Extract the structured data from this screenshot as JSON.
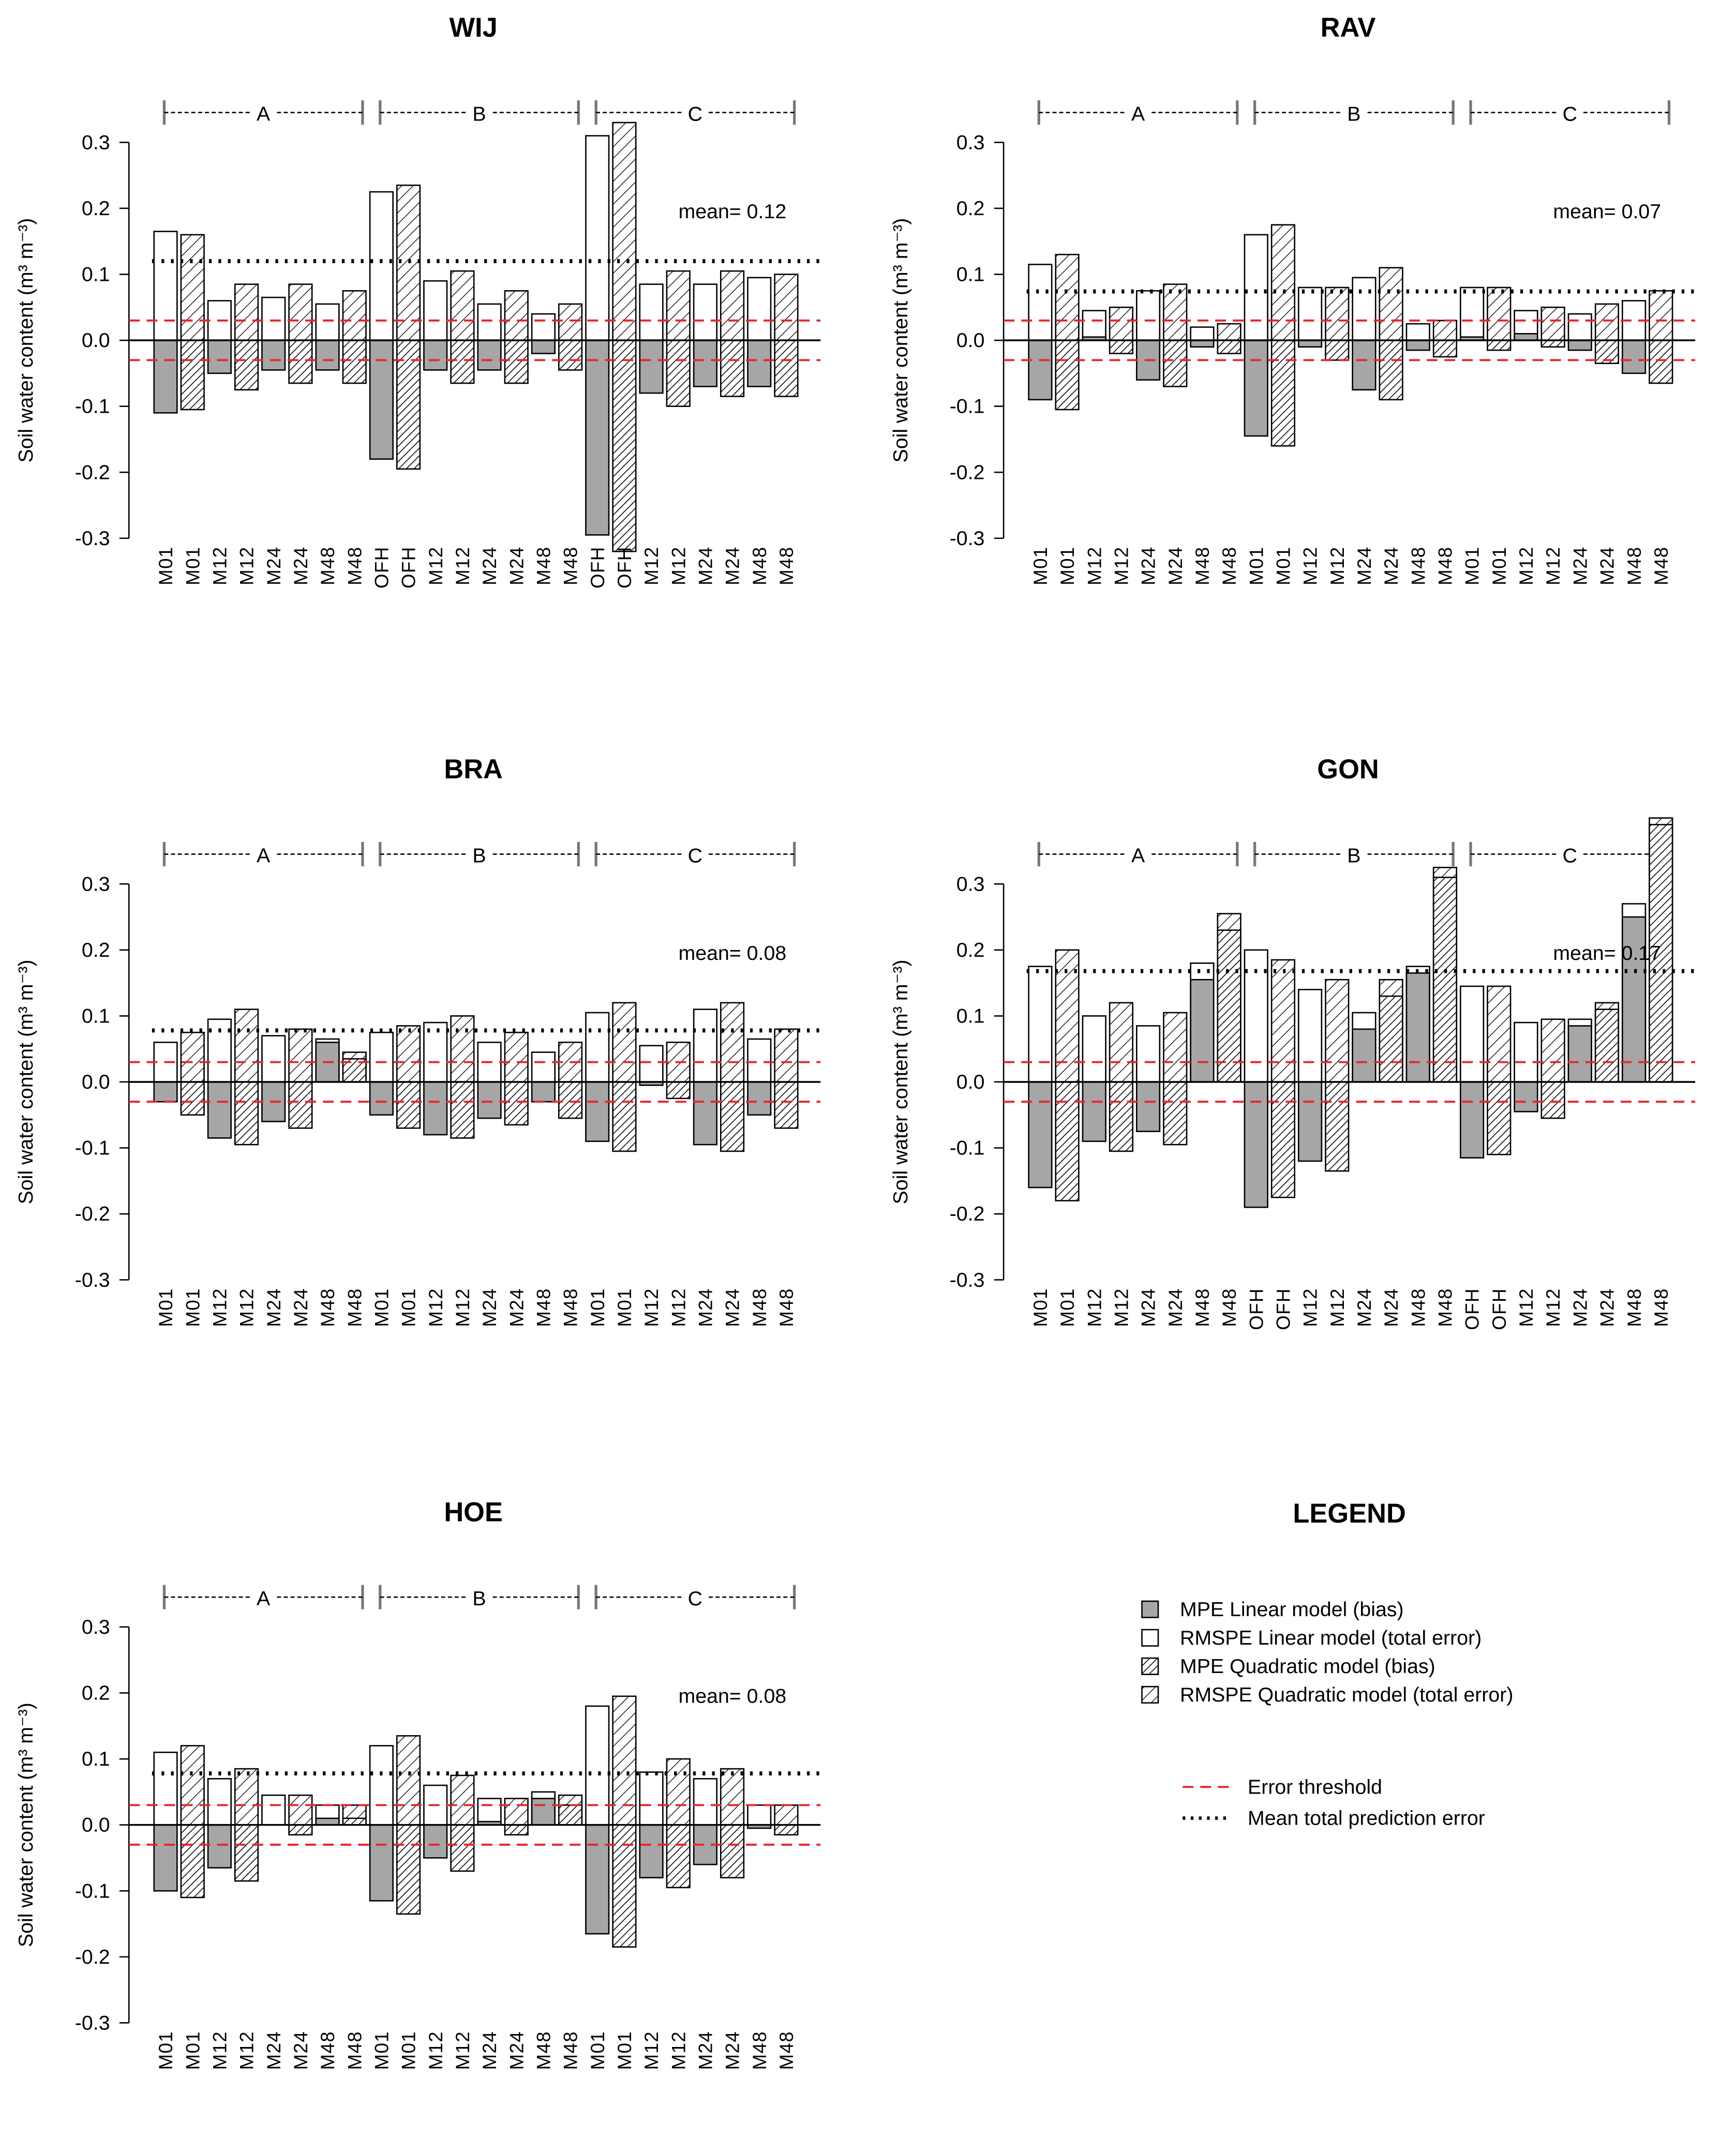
{
  "chart_data": [
    {
      "type": "bar",
      "title": "WIJ",
      "ylabel": "Soil water content  (m³ m⁻³)",
      "groups": [
        "A",
        "B",
        "C"
      ],
      "categories": [
        "M01",
        "M01",
        "M12",
        "M12",
        "M24",
        "M24",
        "M48",
        "M48",
        "OFH",
        "OFH",
        "M12",
        "M12",
        "M24",
        "M24",
        "M48",
        "M48",
        "OFH",
        "OFH",
        "M12",
        "M12",
        "M24",
        "M24",
        "M48",
        "M48"
      ],
      "rmspe": [
        0.165,
        0.16,
        0.06,
        0.085,
        0.065,
        0.085,
        0.055,
        0.075,
        0.225,
        0.235,
        0.09,
        0.105,
        0.055,
        0.075,
        0.04,
        0.055,
        0.31,
        0.33,
        0.085,
        0.105,
        0.085,
        0.105,
        0.095,
        0.1
      ],
      "mpe": [
        -0.11,
        -0.105,
        -0.05,
        -0.075,
        -0.045,
        -0.065,
        -0.045,
        -0.065,
        -0.18,
        -0.195,
        -0.045,
        -0.065,
        -0.045,
        -0.065,
        -0.02,
        -0.045,
        -0.295,
        -0.32,
        -0.08,
        -0.1,
        -0.07,
        -0.085,
        -0.07,
        -0.085
      ],
      "mean": 0.12,
      "mean_label": "mean= 0.12",
      "thresholds": [
        0.03,
        -0.03
      ],
      "ylim": [
        -0.3,
        0.3
      ],
      "yticks": [
        0.3,
        0.2,
        0.1,
        {
          "value": 0,
          "label": "0.0"
        },
        -0.1,
        -0.2,
        -0.3
      ]
    },
    {
      "type": "bar",
      "title": "RAV",
      "ylabel": "Soil water content  (m³ m⁻³)",
      "groups": [
        "A",
        "B",
        "C"
      ],
      "categories": [
        "M01",
        "M01",
        "M12",
        "M12",
        "M24",
        "M24",
        "M48",
        "M48",
        "M01",
        "M01",
        "M12",
        "M12",
        "M24",
        "M24",
        "M48",
        "M48",
        "M01",
        "M01",
        "M12",
        "M12",
        "M24",
        "M24",
        "M48",
        "M48"
      ],
      "rmspe": [
        0.115,
        0.13,
        0.045,
        0.05,
        0.075,
        0.085,
        0.02,
        0.025,
        0.16,
        0.175,
        0.08,
        0.08,
        0.095,
        0.11,
        0.025,
        0.03,
        0.08,
        0.08,
        0.045,
        0.05,
        0.04,
        0.055,
        0.06,
        0.075
      ],
      "mpe": [
        -0.09,
        -0.105,
        0.005,
        -0.02,
        -0.06,
        -0.07,
        -0.01,
        -0.02,
        -0.145,
        -0.16,
        -0.01,
        -0.03,
        -0.075,
        -0.09,
        -0.015,
        -0.025,
        0.005,
        -0.015,
        0.01,
        -0.01,
        -0.015,
        -0.035,
        -0.05,
        -0.065
      ],
      "mean": 0.074,
      "mean_label": "mean= 0.07",
      "thresholds": [
        0.03,
        -0.03
      ],
      "ylim": [
        -0.3,
        0.3
      ],
      "yticks": [
        0.3,
        0.2,
        0.1,
        {
          "value": 0,
          "label": "0.0"
        },
        -0.1,
        -0.2,
        -0.3
      ]
    },
    {
      "type": "bar",
      "title": "BRA",
      "ylabel": "Soil water content  (m³ m⁻³)",
      "groups": [
        "A",
        "B",
        "C"
      ],
      "categories": [
        "M01",
        "M01",
        "M12",
        "M12",
        "M24",
        "M24",
        "M48",
        "M48",
        "M01",
        "M01",
        "M12",
        "M12",
        "M24",
        "M24",
        "M48",
        "M48",
        "M01",
        "M01",
        "M12",
        "M12",
        "M24",
        "M24",
        "M48",
        "M48"
      ],
      "rmspe": [
        0.06,
        0.075,
        0.095,
        0.11,
        0.07,
        0.08,
        0.065,
        0.045,
        0.075,
        0.085,
        0.09,
        0.1,
        0.06,
        0.075,
        0.045,
        0.06,
        0.105,
        0.12,
        0.055,
        0.06,
        0.11,
        0.12,
        0.065,
        0.08
      ],
      "mpe": [
        -0.03,
        -0.05,
        -0.085,
        -0.095,
        -0.06,
        -0.07,
        0.06,
        0.035,
        -0.05,
        -0.07,
        -0.08,
        -0.085,
        -0.055,
        -0.065,
        -0.03,
        -0.055,
        -0.09,
        -0.105,
        -0.005,
        -0.025,
        -0.095,
        -0.105,
        -0.05,
        -0.07
      ],
      "mean": 0.078,
      "mean_label": "mean= 0.08",
      "thresholds": [
        0.03,
        -0.03
      ],
      "ylim": [
        -0.3,
        0.3
      ],
      "yticks": [
        0.3,
        0.2,
        0.1,
        {
          "value": 0,
          "label": "0.0"
        },
        -0.1,
        -0.2,
        -0.3
      ]
    },
    {
      "type": "bar",
      "title": "GON",
      "ylabel": "Soil water content  (m³ m⁻³)",
      "groups": [
        "A",
        "B",
        "C"
      ],
      "categories": [
        "M01",
        "M01",
        "M12",
        "M12",
        "M24",
        "M24",
        "M48",
        "M48",
        "OFH",
        "OFH",
        "M12",
        "M12",
        "M24",
        "M24",
        "M48",
        "M48",
        "OFH",
        "OFH",
        "M12",
        "M12",
        "M24",
        "M24",
        "M48",
        "M48"
      ],
      "rmspe": [
        0.175,
        0.2,
        0.1,
        0.12,
        0.085,
        0.105,
        0.18,
        0.255,
        0.2,
        0.185,
        0.14,
        0.155,
        0.105,
        0.155,
        0.175,
        0.325,
        0.145,
        0.145,
        0.09,
        0.095,
        0.095,
        0.12,
        0.27,
        0.4
      ],
      "mpe": [
        -0.16,
        -0.18,
        -0.09,
        -0.105,
        -0.075,
        -0.095,
        0.155,
        0.23,
        -0.19,
        -0.175,
        -0.12,
        -0.135,
        0.08,
        0.13,
        0.165,
        0.31,
        -0.115,
        -0.11,
        -0.045,
        -0.055,
        0.085,
        0.11,
        0.25,
        0.39
      ],
      "mean": 0.168,
      "mean_label": "mean= 0.17",
      "thresholds": [
        0.03,
        -0.03
      ],
      "ylim": [
        -0.3,
        0.3
      ],
      "yticks": [
        0.3,
        0.2,
        0.1,
        {
          "value": 0,
          "label": "0.0"
        },
        -0.1,
        -0.2,
        -0.3
      ]
    },
    {
      "type": "bar",
      "title": "HOE",
      "ylabel": "Soil water content  (m³ m⁻³)",
      "groups": [
        "A",
        "B",
        "C"
      ],
      "categories": [
        "M01",
        "M01",
        "M12",
        "M12",
        "M24",
        "M24",
        "M48",
        "M48",
        "M01",
        "M01",
        "M12",
        "M12",
        "M24",
        "M24",
        "M48",
        "M48",
        "M01",
        "M01",
        "M12",
        "M12",
        "M24",
        "M24",
        "M48",
        "M48"
      ],
      "rmspe": [
        0.11,
        0.12,
        0.07,
        0.085,
        0.045,
        0.045,
        0.03,
        0.03,
        0.12,
        0.135,
        0.06,
        0.075,
        0.04,
        0.04,
        0.05,
        0.045,
        0.18,
        0.195,
        0.08,
        0.1,
        0.07,
        0.085,
        0.03,
        0.03
      ],
      "mpe": [
        -0.1,
        -0.11,
        -0.065,
        -0.085,
        0.0,
        -0.015,
        0.01,
        0.01,
        -0.115,
        -0.135,
        -0.05,
        -0.07,
        0.005,
        -0.015,
        0.04,
        0.03,
        -0.165,
        -0.185,
        -0.08,
        -0.095,
        -0.06,
        -0.08,
        -0.005,
        -0.015
      ],
      "mean": 0.078,
      "mean_label": "mean= 0.08",
      "thresholds": [
        0.03,
        -0.03
      ],
      "ylim": [
        -0.3,
        0.3
      ],
      "yticks": [
        0.3,
        0.2,
        0.1,
        {
          "value": 0,
          "label": "0.0"
        },
        -0.1,
        -0.2,
        -0.3
      ]
    }
  ],
  "legend": {
    "title": "LEGEND",
    "boxes": [
      "MPE Linear model (bias)",
      "RMSPE Linear model (total error)",
      "MPE Quadratic model (bias)",
      "RMSPE Quadratic model (total error)"
    ],
    "lines": [
      {
        "name": "Error threshold",
        "color": "#e8262a"
      },
      {
        "name": "Mean total prediction error",
        "color": "#000000"
      }
    ]
  }
}
